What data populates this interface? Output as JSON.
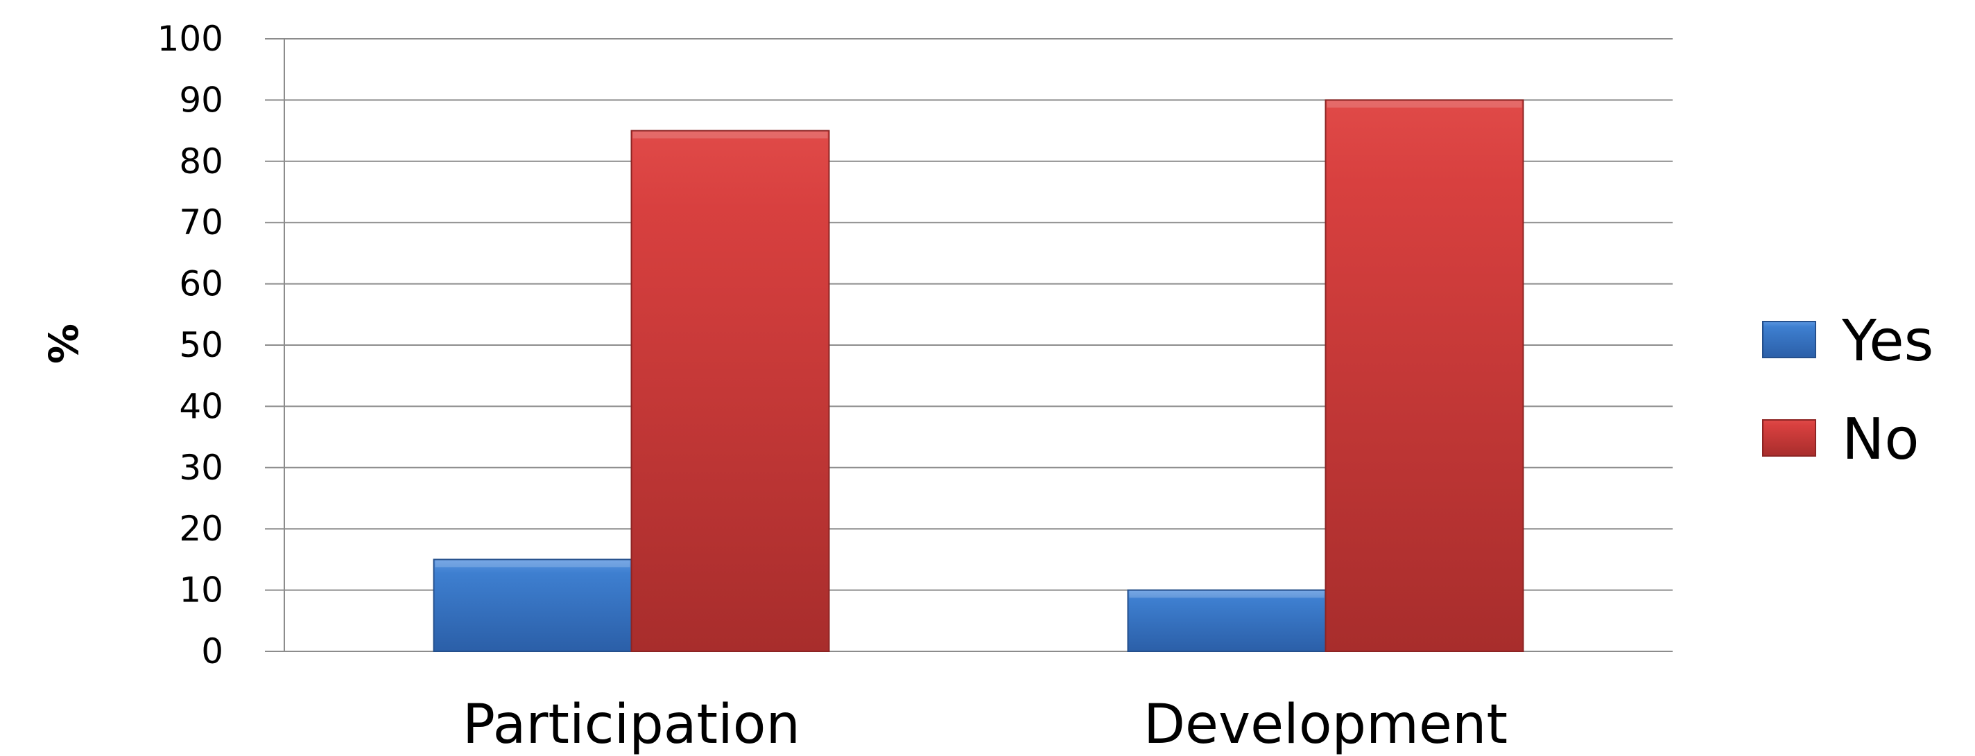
{
  "chart_data": {
    "type": "bar",
    "categories": [
      "Participation",
      "Development"
    ],
    "series": [
      {
        "name": "Yes",
        "values": [
          15,
          10
        ]
      },
      {
        "name": "No",
        "values": [
          85,
          90
        ]
      }
    ],
    "title": "",
    "xlabel": "",
    "ylabel": "%",
    "ylim": [
      0,
      100
    ],
    "yticks": [
      "0",
      "10",
      "20",
      "30",
      "40",
      "50",
      "60",
      "70",
      "80",
      "90",
      "100"
    ],
    "grid": true,
    "legend_position": "right"
  },
  "colors": {
    "Yes": "#3b78c8",
    "No": "#c8393a"
  }
}
